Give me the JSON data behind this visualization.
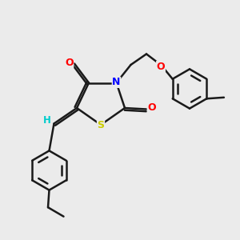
{
  "background_color": "#ebebeb",
  "bond_color": "#1a1a1a",
  "atom_colors": {
    "N": "#0000ff",
    "O": "#ff0000",
    "S": "#cccc00",
    "H": "#00cccc",
    "C": "#1a1a1a"
  },
  "figsize": [
    3.0,
    3.0
  ],
  "dpi": 100
}
